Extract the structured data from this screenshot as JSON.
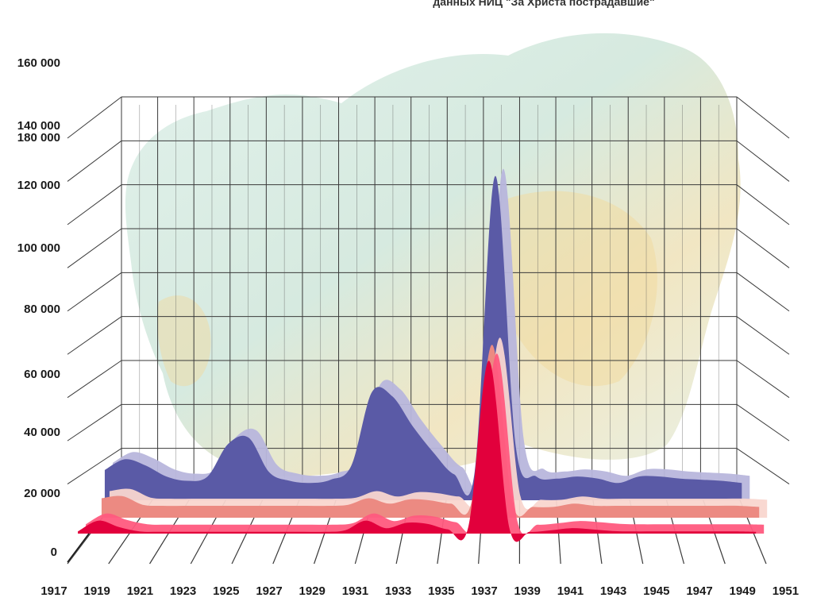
{
  "chart_data": {
    "type": "area",
    "title": "данных НИЦ \"За Христа пострадавшие\"",
    "xlabel": "",
    "ylabel": "",
    "ylim": [
      0,
      180000
    ],
    "yticks": [
      "0",
      "20 000",
      "40 000",
      "60 000",
      "80 000",
      "100 000",
      "120 000",
      "140 000",
      "160 000",
      "180 000"
    ],
    "xticks": [
      "1917",
      "1919",
      "1921",
      "1923",
      "1925",
      "1927",
      "1929",
      "1931",
      "1933",
      "1935",
      "1937",
      "1939",
      "1941",
      "1943",
      "1945",
      "1947",
      "1949",
      "1951"
    ],
    "grid": true,
    "background": "map of the USSR",
    "x": [
      1917,
      1918,
      1919,
      1920,
      1921,
      1922,
      1923,
      1924,
      1925,
      1926,
      1927,
      1928,
      1929,
      1930,
      1931,
      1932,
      1933,
      1934,
      1935,
      1936,
      1937,
      1938,
      1939,
      1940,
      1941,
      1942,
      1943,
      1944,
      1945,
      1946,
      1947,
      1948,
      1949,
      1950
    ],
    "series": [
      {
        "color": "#5a5aa6",
        "shade": "#b8b6dc",
        "values": [
          null,
          14000,
          19000,
          16000,
          11000,
          9000,
          11000,
          26000,
          29000,
          13000,
          9000,
          8000,
          9500,
          16000,
          50000,
          48000,
          34000,
          22000,
          12000,
          13000,
          150000,
          25000,
          11000,
          10000,
          11000,
          10000,
          8000,
          11000,
          11000,
          10000,
          9500,
          9000,
          8000,
          null
        ]
      },
      {
        "color": "#ec8a82",
        "shade": "#f9d6cf",
        "values": [
          null,
          9000,
          10000,
          6000,
          5500,
          5500,
          5500,
          5500,
          5500,
          5500,
          5500,
          5500,
          5500,
          6000,
          9000,
          6500,
          8500,
          8000,
          6500,
          7000,
          80000,
          6500,
          5000,
          5000,
          6500,
          5500,
          5500,
          5500,
          5500,
          5500,
          5500,
          5500,
          5500,
          5000
        ]
      },
      {
        "color": "#e2003c",
        "shade": "#ff5a7e",
        "values": [
          1000,
          6000,
          3000,
          1000,
          800,
          800,
          800,
          800,
          800,
          800,
          800,
          800,
          800,
          1500,
          6000,
          2500,
          5000,
          4500,
          2000,
          3000,
          80000,
          2500,
          800,
          1500,
          2500,
          2000,
          1200,
          1000,
          1000,
          1000,
          1000,
          1000,
          1000,
          800
        ]
      }
    ]
  }
}
